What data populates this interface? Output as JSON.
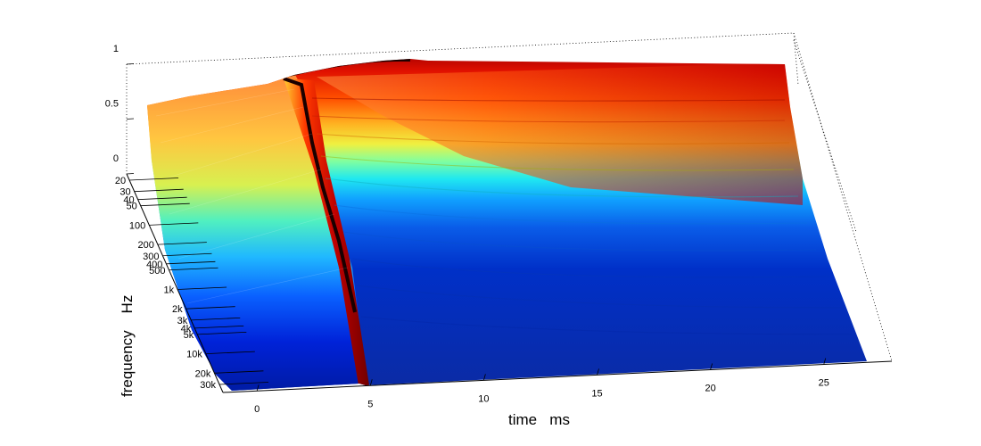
{
  "chart_data": {
    "type": "surface",
    "xlabel": "time   ms",
    "ylabel": "frequency    Hz",
    "x_ticks": [
      0,
      5,
      10,
      15,
      20,
      25
    ],
    "y_ticks": [
      "20",
      "30",
      "40",
      "50",
      "100",
      "200",
      "300",
      "400",
      "500",
      "1k",
      "2k",
      "3k",
      "4k",
      "5k",
      "10k",
      "20k",
      "30k"
    ],
    "z_ticks": [
      "0",
      "0.5",
      "1"
    ],
    "colormap": "jet",
    "grid": "dotted box",
    "xlim": [
      -1.5,
      28
    ],
    "ylim_hz": [
      16,
      40000
    ],
    "zlim": [
      0,
      1
    ]
  }
}
